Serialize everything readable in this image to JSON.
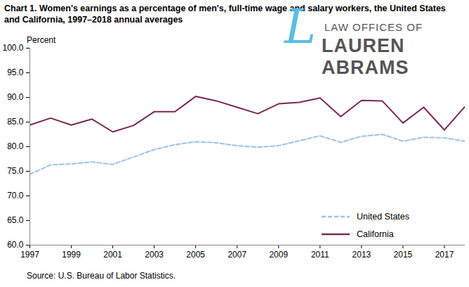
{
  "chart_data": {
    "type": "line",
    "title": "Chart 1. Women's earnings as a percentage of men's, full-time wage and salary workers, the United States and California, 1997–2018 annual averages",
    "ylabel": "Percent",
    "source": "Source: U.S. Bureau of Labor Statistics.",
    "annotations": [
      "L",
      "LAW OFFICES OF",
      "LAUREN ABRAMS"
    ],
    "x": [
      1997,
      1998,
      1999,
      2000,
      2001,
      2002,
      2003,
      2004,
      2005,
      2006,
      2007,
      2008,
      2009,
      2010,
      2011,
      2012,
      2013,
      2014,
      2015,
      2016,
      2017,
      2018
    ],
    "series": [
      {
        "name": "United States",
        "color": "#9cc3e8",
        "line_style": "dashed",
        "values": [
          74.4,
          76.3,
          76.5,
          76.9,
          76.4,
          77.9,
          79.4,
          80.4,
          81.0,
          80.8,
          80.2,
          79.9,
          80.2,
          81.2,
          82.2,
          80.9,
          82.1,
          82.5,
          81.1,
          81.9,
          81.8,
          81.1
        ]
      },
      {
        "name": "California",
        "color": "#7b2a50",
        "line_style": "solid",
        "values": [
          84.4,
          85.8,
          84.4,
          85.6,
          83.0,
          84.3,
          87.1,
          87.1,
          90.2,
          89.3,
          88.0,
          86.7,
          88.7,
          89.0,
          89.9,
          86.1,
          89.4,
          89.3,
          84.8,
          88.0,
          83.4,
          88.2
        ]
      }
    ],
    "xlim": [
      1997,
      2018
    ],
    "xticks": [
      1997,
      1999,
      2001,
      2003,
      2005,
      2007,
      2009,
      2011,
      2013,
      2015,
      2017
    ],
    "ylim": [
      60,
      100
    ],
    "yticks": [
      {
        "value": 60,
        "label": "60.0"
      },
      {
        "value": 65,
        "label": "65.0"
      },
      {
        "value": 70,
        "label": "70.0"
      },
      {
        "value": 75,
        "label": "75.0"
      },
      {
        "value": 80,
        "label": "80.0"
      },
      {
        "value": 85,
        "label": "85.0"
      },
      {
        "value": 90,
        "label": "90.0"
      },
      {
        "value": 95,
        "label": "95.0"
      },
      {
        "value": 100,
        "label": "100.0"
      }
    ],
    "grid": false,
    "legend": "lower right"
  }
}
